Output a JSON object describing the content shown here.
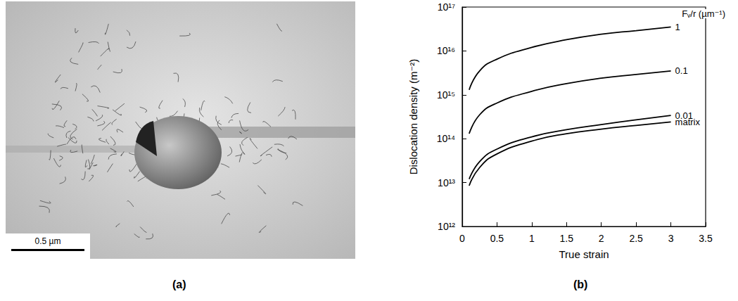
{
  "panels": [
    {
      "label": "(a)",
      "type": "micrograph",
      "scale_bar": "0.5 µm"
    },
    {
      "label": "(b)"
    }
  ],
  "chart_data": {
    "type": "line",
    "x_label": "True strain",
    "y_label": "Dislocation density (m⁻²)",
    "annotations": [
      "Fᵥ/r (µm⁻¹)"
    ],
    "x": [
      0.1,
      0.25,
      0.5,
      1,
      1.5,
      2,
      2.5,
      3
    ],
    "series": [
      {
        "name": "1",
        "color": "#000000",
        "values": [
          1300000000000000.0,
          3500000000000000.0,
          6500000000000000.0,
          1.2e+16,
          1.8e+16,
          2.4e+16,
          2.9e+16,
          3.5e+16
        ]
      },
      {
        "name": "0.1",
        "color": "#000000",
        "values": [
          130000000000000.0,
          350000000000000.0,
          650000000000000.0,
          1200000000000000.0,
          1800000000000000.0,
          2400000000000000.0,
          2900000000000000.0,
          3500000000000000.0
        ]
      },
      {
        "name": "0.01",
        "color": "#000000",
        "values": [
          12000000000000.0,
          30000000000000.0,
          58000000000000.0,
          110000000000000.0,
          160000000000000.0,
          210000000000000.0,
          270000000000000.0,
          340000000000000.0
        ]
      },
      {
        "name": "matrix",
        "color": "#000000",
        "values": [
          8500000000000.0,
          22000000000000.0,
          45000000000000.0,
          88000000000000.0,
          130000000000000.0,
          165000000000000.0,
          200000000000000.0,
          240000000000000.0
        ]
      }
    ],
    "xlim": [
      0,
      3.5
    ],
    "xticks": [
      0,
      0.5,
      1,
      1.5,
      2,
      2.5,
      3,
      3.5
    ],
    "ylim": [
      1000000000000.0,
      1e+17
    ],
    "yticks": [
      {
        "value": 1000000000000.0,
        "label": "10¹²"
      },
      {
        "value": 10000000000000.0,
        "label": "10¹³"
      },
      {
        "value": 100000000000000.0,
        "label": "10¹⁴"
      },
      {
        "value": 1000000000000000.0,
        "label": "10¹⁵"
      },
      {
        "value": 1e+16,
        "label": "10¹⁶"
      },
      {
        "value": 1e+17,
        "label": "10¹⁷"
      }
    ],
    "log": "y",
    "grid": false
  }
}
